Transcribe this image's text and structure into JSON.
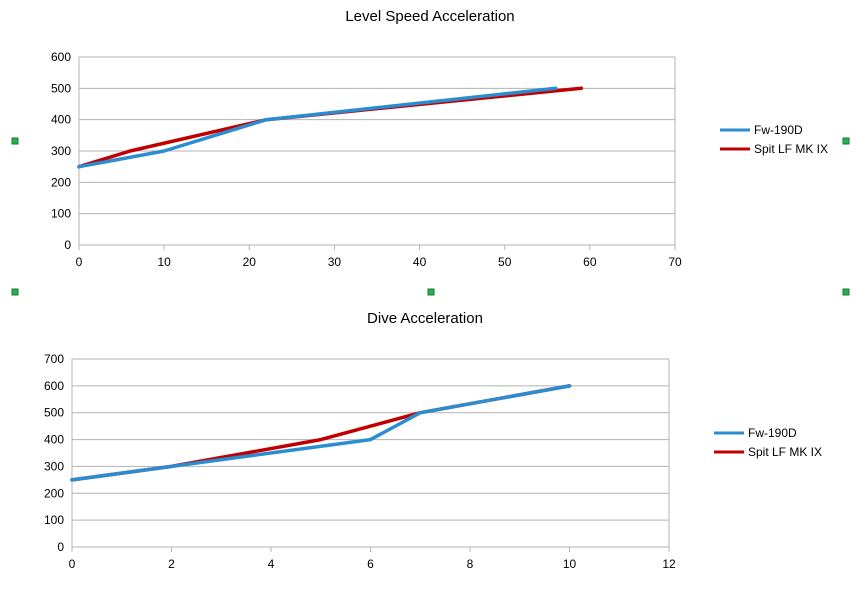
{
  "chart_data": [
    {
      "type": "line",
      "title": "Level Speed Acceleration",
      "xlabel": "",
      "ylabel": "",
      "xlim": [
        0,
        70
      ],
      "ylim": [
        0,
        600
      ],
      "xticks": [
        0,
        10,
        20,
        30,
        40,
        50,
        60,
        70
      ],
      "yticks": [
        0,
        100,
        200,
        300,
        400,
        500,
        600
      ],
      "grid": true,
      "legend": "right",
      "series": [
        {
          "name": "Fw-190D",
          "color": "#2a8dd0",
          "x": [
            0,
            10,
            22,
            56
          ],
          "y": [
            250,
            300,
            400,
            500
          ]
        },
        {
          "name": "Spit LF MK IX",
          "color": "#c00000",
          "x": [
            0,
            6,
            22,
            59
          ],
          "y": [
            250,
            300,
            400,
            500
          ]
        }
      ]
    },
    {
      "type": "line",
      "title": "Dive Acceleration",
      "xlabel": "",
      "ylabel": "",
      "xlim": [
        0,
        12
      ],
      "ylim": [
        0,
        700
      ],
      "xticks": [
        0,
        2,
        4,
        6,
        8,
        10,
        12
      ],
      "yticks": [
        0,
        100,
        200,
        300,
        400,
        500,
        600,
        700
      ],
      "grid": true,
      "legend": "right",
      "series": [
        {
          "name": "Fw-190D",
          "color": "#2a8dd0",
          "x": [
            0,
            2,
            6,
            7,
            10
          ],
          "y": [
            250,
            300,
            400,
            500,
            600
          ]
        },
        {
          "name": "Spit LF MK IX",
          "color": "#c00000",
          "x": [
            0,
            2,
            5,
            7,
            10
          ],
          "y": [
            250,
            300,
            400,
            500,
            600
          ]
        }
      ]
    }
  ],
  "selection_handles": {
    "color": "#22b14c"
  }
}
